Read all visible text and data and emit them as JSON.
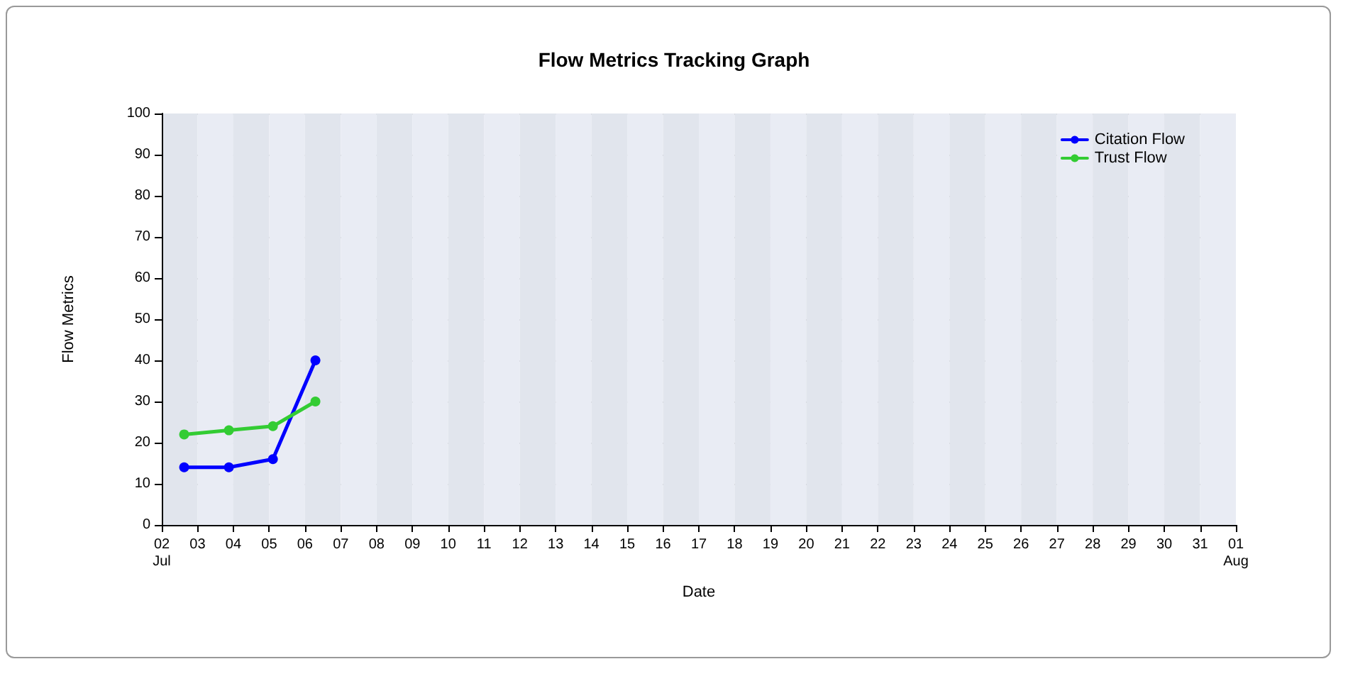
{
  "chart_data": {
    "type": "line",
    "title": "Flow Metrics Tracking Graph",
    "xlabel": "Date",
    "ylabel": "Flow Metrics",
    "x": [
      "--07-02T15:00",
      "--07-03T21:00",
      "--07-05T02:30",
      "--07-06T07:00"
    ],
    "series": [
      {
        "name": "Citation Flow",
        "color": "#0000ff",
        "values": [
          14,
          14,
          16,
          40
        ]
      },
      {
        "name": "Trust Flow",
        "color": "#33cc33",
        "values": [
          22,
          23,
          24,
          30
        ]
      }
    ],
    "xlim": [
      "--07-02",
      "--08-01"
    ],
    "xticks": [
      {
        "value": "--07-02",
        "label": "02\nJul"
      },
      {
        "value": "--07-03",
        "label": "03"
      },
      {
        "value": "--07-04",
        "label": "04"
      },
      {
        "value": "--07-05",
        "label": "05"
      },
      {
        "value": "--07-06",
        "label": "06"
      },
      {
        "value": "--07-07",
        "label": "07"
      },
      {
        "value": "--07-08",
        "label": "08"
      },
      {
        "value": "--07-09",
        "label": "09"
      },
      {
        "value": "--07-10",
        "label": "10"
      },
      {
        "value": "--07-11",
        "label": "11"
      },
      {
        "value": "--07-12",
        "label": "12"
      },
      {
        "value": "--07-13",
        "label": "13"
      },
      {
        "value": "--07-14",
        "label": "14"
      },
      {
        "value": "--07-15",
        "label": "15"
      },
      {
        "value": "--07-16",
        "label": "16"
      },
      {
        "value": "--07-17",
        "label": "17"
      },
      {
        "value": "--07-18",
        "label": "18"
      },
      {
        "value": "--07-19",
        "label": "19"
      },
      {
        "value": "--07-20",
        "label": "20"
      },
      {
        "value": "--07-21",
        "label": "21"
      },
      {
        "value": "--07-22",
        "label": "22"
      },
      {
        "value": "--07-23",
        "label": "23"
      },
      {
        "value": "--07-24",
        "label": "24"
      },
      {
        "value": "--07-25",
        "label": "25"
      },
      {
        "value": "--07-26",
        "label": "26"
      },
      {
        "value": "--07-27",
        "label": "27"
      },
      {
        "value": "--07-28",
        "label": "28"
      },
      {
        "value": "--07-29",
        "label": "29"
      },
      {
        "value": "--07-30",
        "label": "30"
      },
      {
        "value": "--07-31",
        "label": "31"
      },
      {
        "value": "--08-01",
        "label": "01\nAug"
      }
    ],
    "ylim": [
      0,
      100
    ],
    "yticks": [
      0,
      10,
      20,
      30,
      40,
      50,
      60,
      70,
      80,
      90,
      100
    ],
    "grid": "y",
    "legend": "top right",
    "marker": "circle",
    "line_style": "solid"
  }
}
